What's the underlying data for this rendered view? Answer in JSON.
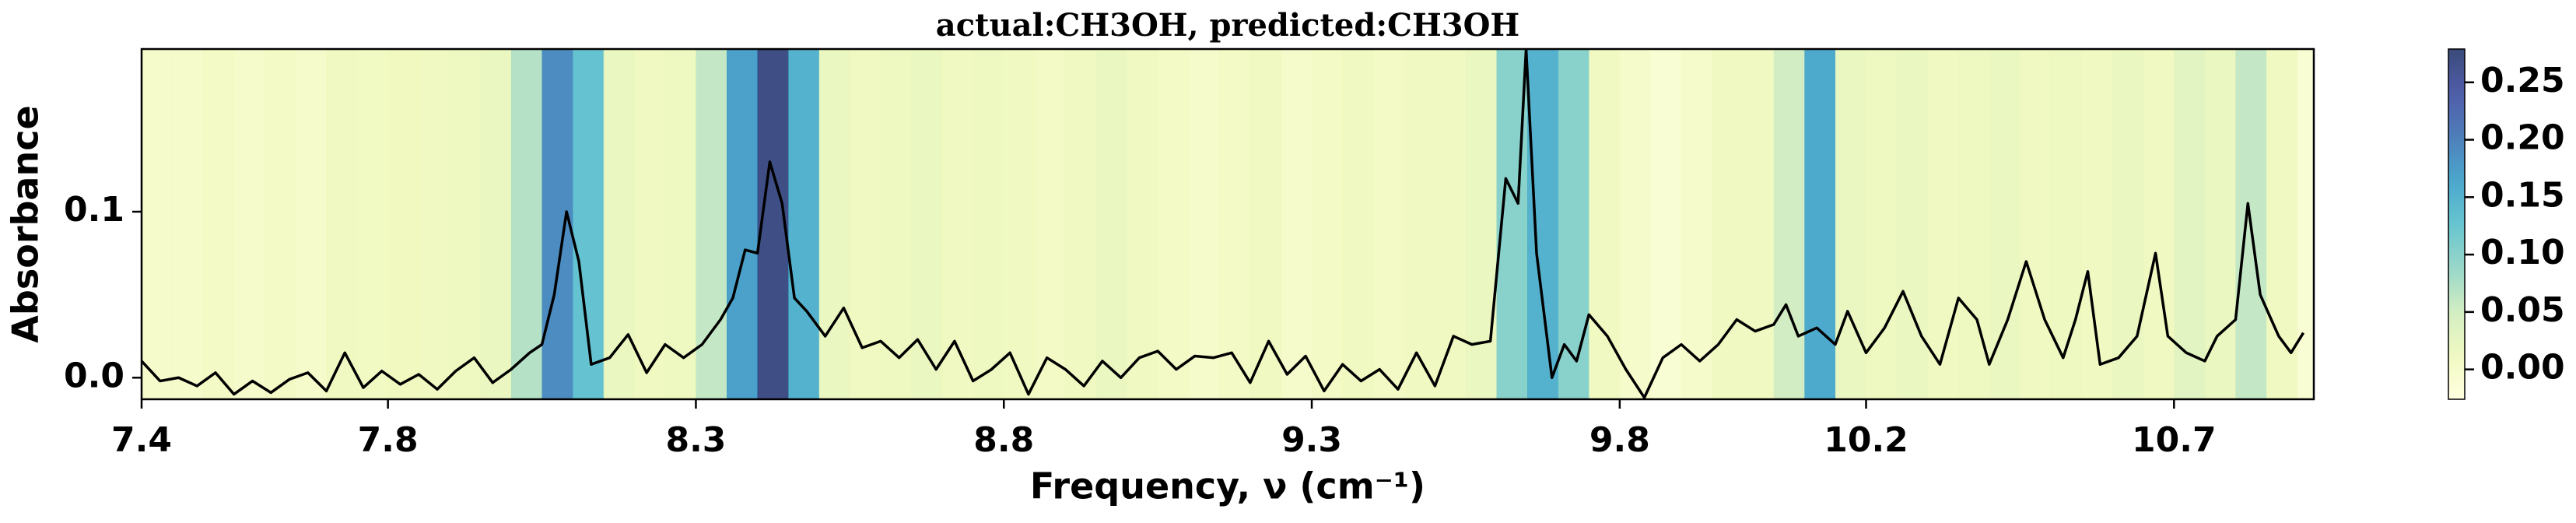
{
  "chart_data": {
    "type": "line",
    "title": "actual:CH3OH, predicted:CH3OH",
    "x_label": "Frequency, ν (cm⁻¹)",
    "y_label": "Absorbance",
    "color": "#000000",
    "xlim": [
      7.4,
      10.927
    ],
    "xticks": [
      7.4,
      7.8,
      8.3,
      8.8,
      9.3,
      9.8,
      10.2,
      10.7
    ],
    "ylim": [
      -0.013,
      0.198
    ],
    "yticks": [
      {
        "value": 0,
        "label": "0.0"
      },
      0.1
    ],
    "x": [
      7.4,
      7.43,
      7.46,
      7.49,
      7.52,
      7.55,
      7.58,
      7.61,
      7.64,
      7.67,
      7.7,
      7.73,
      7.76,
      7.79,
      7.82,
      7.85,
      7.88,
      7.91,
      7.94,
      7.97,
      8.0,
      8.03,
      8.05,
      8.07,
      8.09,
      8.11,
      8.13,
      8.16,
      8.19,
      8.22,
      8.25,
      8.28,
      8.31,
      8.34,
      8.36,
      8.38,
      8.4,
      8.42,
      8.44,
      8.46,
      8.48,
      8.51,
      8.54,
      8.57,
      8.6,
      8.63,
      8.66,
      8.69,
      8.72,
      8.75,
      8.78,
      8.81,
      8.84,
      8.87,
      8.9,
      8.93,
      8.96,
      8.99,
      9.02,
      9.05,
      9.08,
      9.11,
      9.14,
      9.17,
      9.2,
      9.23,
      9.26,
      9.29,
      9.32,
      9.35,
      9.38,
      9.41,
      9.44,
      9.47,
      9.5,
      9.53,
      9.56,
      9.59,
      9.615,
      9.635,
      9.648,
      9.665,
      9.69,
      9.71,
      9.73,
      9.75,
      9.78,
      9.81,
      9.84,
      9.87,
      9.9,
      9.93,
      9.96,
      9.99,
      10.02,
      10.05,
      10.07,
      10.09,
      10.12,
      10.15,
      10.17,
      10.2,
      10.23,
      10.26,
      10.29,
      10.32,
      10.35,
      10.38,
      10.4,
      10.43,
      10.46,
      10.49,
      10.52,
      10.54,
      10.56,
      10.58,
      10.61,
      10.64,
      10.67,
      10.69,
      10.72,
      10.75,
      10.77,
      10.8,
      10.82,
      10.84,
      10.87,
      10.89,
      10.91
    ],
    "values": [
      0.01,
      -0.002,
      0.0,
      -0.005,
      0.003,
      -0.01,
      -0.002,
      -0.009,
      -0.001,
      0.003,
      -0.008,
      0.015,
      -0.006,
      0.004,
      -0.004,
      0.002,
      -0.007,
      0.004,
      0.012,
      -0.003,
      0.005,
      0.015,
      0.02,
      0.05,
      0.1,
      0.07,
      0.008,
      0.012,
      0.026,
      0.003,
      0.02,
      0.012,
      0.02,
      0.035,
      0.048,
      0.077,
      0.075,
      0.13,
      0.105,
      0.048,
      0.04,
      0.025,
      0.042,
      0.018,
      0.022,
      0.012,
      0.023,
      0.005,
      0.022,
      -0.002,
      0.005,
      0.015,
      -0.01,
      0.012,
      0.005,
      -0.005,
      0.01,
      0.0,
      0.012,
      0.016,
      0.005,
      0.013,
      0.012,
      0.015,
      -0.003,
      0.022,
      0.002,
      0.013,
      -0.008,
      0.008,
      -0.002,
      0.005,
      -0.007,
      0.015,
      -0.005,
      0.025,
      0.02,
      0.022,
      0.12,
      0.105,
      0.198,
      0.075,
      0.0,
      0.02,
      0.01,
      0.038,
      0.025,
      0.005,
      -0.012,
      0.012,
      0.02,
      0.01,
      0.02,
      0.035,
      0.028,
      0.032,
      0.044,
      0.025,
      0.03,
      0.02,
      0.04,
      0.015,
      0.03,
      0.052,
      0.025,
      0.008,
      0.048,
      0.035,
      0.008,
      0.035,
      0.07,
      0.035,
      0.012,
      0.035,
      0.064,
      0.008,
      0.012,
      0.025,
      0.075,
      0.025,
      0.015,
      0.01,
      0.025,
      0.035,
      0.105,
      0.05,
      0.025,
      0.015,
      0.027
    ],
    "heatmap": {
      "colormap": "YlGnBu",
      "bins": [
        7.4,
        7.45,
        7.5,
        7.55,
        7.6,
        7.65,
        7.7,
        7.75,
        7.8,
        7.85,
        7.9,
        7.95,
        8.0,
        8.05,
        8.1,
        8.15,
        8.2,
        8.25,
        8.3,
        8.35,
        8.4,
        8.45,
        8.5,
        8.55,
        8.6,
        8.65,
        8.7,
        8.75,
        8.8,
        8.85,
        8.9,
        8.95,
        9.0,
        9.05,
        9.1,
        9.15,
        9.2,
        9.25,
        9.3,
        9.35,
        9.4,
        9.45,
        9.5,
        9.55,
        9.6,
        9.65,
        9.7,
        9.75,
        9.8,
        9.85,
        9.9,
        9.95,
        10.0,
        10.05,
        10.1,
        10.15,
        10.2,
        10.25,
        10.3,
        10.35,
        10.4,
        10.45,
        10.5,
        10.55,
        10.6,
        10.65,
        10.7,
        10.75,
        10.8,
        10.85,
        10.9,
        10.95
      ],
      "values": [
        0.0,
        0.0,
        0.005,
        0.0,
        0.005,
        0.0,
        0.01,
        0.008,
        0.012,
        0.01,
        0.015,
        0.02,
        0.07,
        0.19,
        0.13,
        0.02,
        0.01,
        0.015,
        0.06,
        0.17,
        0.27,
        0.15,
        0.02,
        0.01,
        0.015,
        0.02,
        0.01,
        0.015,
        0.01,
        0.005,
        0.01,
        0.02,
        0.01,
        0.005,
        0.0,
        0.005,
        0.01,
        0.0,
        0.005,
        0.01,
        0.005,
        0.01,
        0.01,
        0.02,
        0.1,
        0.15,
        0.1,
        0.01,
        0.0,
        -0.01,
        0.0,
        0.01,
        0.01,
        0.05,
        0.16,
        0.02,
        0.015,
        0.02,
        0.01,
        0.015,
        0.02,
        0.01,
        0.015,
        0.01,
        0.02,
        0.01,
        0.03,
        0.02,
        0.06,
        0.01,
        -0.01
      ]
    },
    "colorbar": {
      "lim": [
        -0.026,
        0.279
      ],
      "ticks": [
        {
          "value": 0,
          "label": "0.00"
        },
        0.05,
        {
          "value": 0.1,
          "label": "0.10"
        },
        0.15,
        {
          "value": 0.2,
          "label": "0.20"
        },
        0.25
      ]
    }
  }
}
